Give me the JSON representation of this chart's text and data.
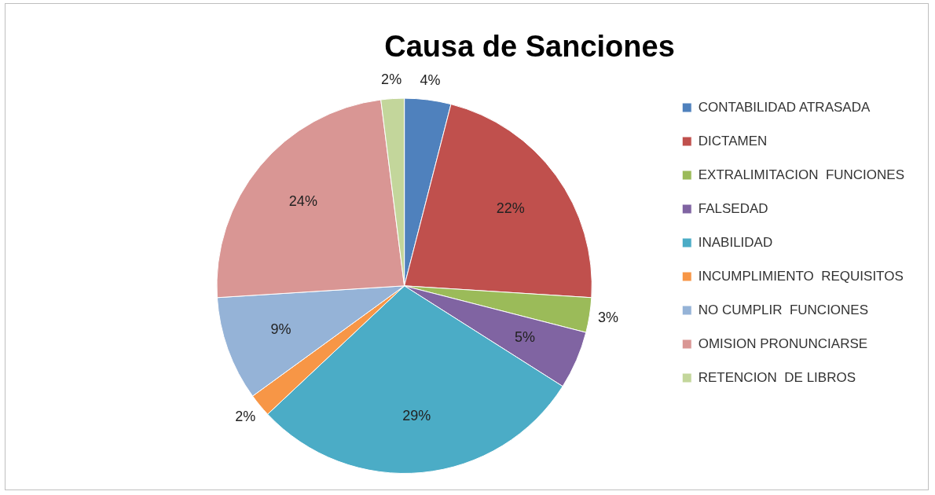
{
  "chart_data": {
    "type": "pie",
    "title": "Causa de Sanciones",
    "categories": [
      "CONTABILIDAD ATRASADA",
      "DICTAMEN",
      "EXTRALIMITACION  FUNCIONES",
      "FALSEDAD",
      "INABILIDAD",
      "INCUMPLIMIENTO  REQUISITOS",
      "NO CUMPLIR  FUNCIONES",
      "OMISION PRONUNCIARSE",
      "RETENCION  DE LIBROS"
    ],
    "values": [
      4,
      22,
      3,
      5,
      29,
      2,
      9,
      24,
      2
    ],
    "value_labels": [
      "4%",
      "22%",
      "3%",
      "5%",
      "29%",
      "2%",
      "9%",
      "24%",
      "2%"
    ],
    "colors": [
      "#4f81bd",
      "#c0504d",
      "#9bbb59",
      "#8064a2",
      "#4bacc6",
      "#f79646",
      "#95b3d7",
      "#d99694",
      "#c3d69b"
    ],
    "legend": "right"
  }
}
